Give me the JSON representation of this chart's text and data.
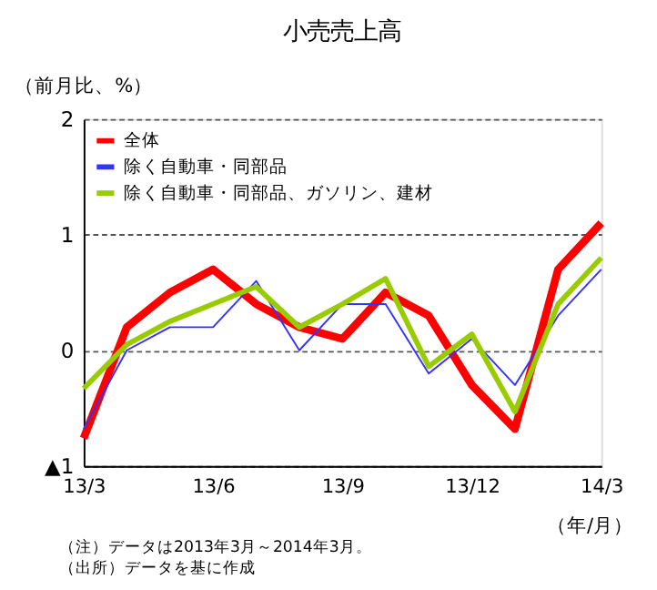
{
  "chart_data": {
    "type": "line",
    "title": "小売売上高",
    "ylabel": "（前月比、%）",
    "xlabel": "（年/月）",
    "categories": [
      "13/3",
      null,
      null,
      "13/6",
      null,
      null,
      "13/9",
      null,
      null,
      "13/12",
      null,
      null,
      "14/3"
    ],
    "series": [
      {
        "name": "全体",
        "color": "#ff0000",
        "values": [
          -0.76,
          0.2,
          0.5,
          0.7,
          0.4,
          0.2,
          0.1,
          0.5,
          0.3,
          -0.3,
          -0.68,
          0.7,
          1.1
        ]
      },
      {
        "name": "除く自動車・同部品",
        "color": "#3333ff",
        "values": [
          -0.68,
          0.0,
          0.2,
          0.2,
          0.6,
          0.0,
          0.4,
          0.4,
          -0.2,
          0.1,
          -0.3,
          0.3,
          0.7
        ]
      },
      {
        "name": "除く自動車・同部品、ガソリン、建材",
        "color": "#99cc00",
        "values": [
          -0.33,
          0.05,
          0.25,
          0.4,
          0.55,
          0.2,
          0.4,
          0.62,
          -0.14,
          0.14,
          -0.53,
          0.4,
          0.8
        ]
      }
    ],
    "ylim": [
      -1,
      2
    ],
    "yticks": [
      {
        "value": -1,
        "label": "▲1"
      },
      0,
      1,
      2
    ],
    "grid": "y",
    "legend": "top left",
    "marker": "none",
    "line_style": "solid",
    "annotations": [
      "（注）データは2013年3月～2014年3月。",
      "（出所）データを基に作成"
    ]
  }
}
